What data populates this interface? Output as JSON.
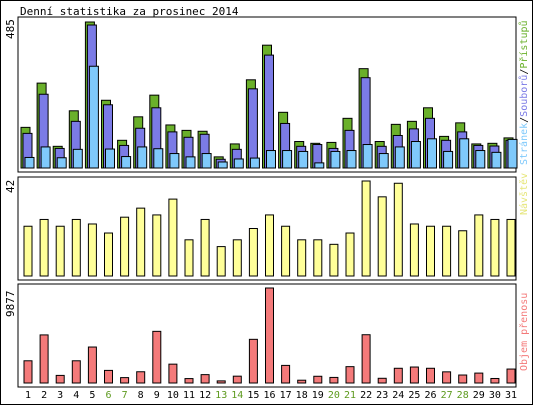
{
  "title": "Denní statistika za prosinec 2014",
  "colors": {
    "pristupu": "#6ab02a",
    "souboru": "#7b7be6",
    "stranek": "#7fc9fb",
    "navstev": "#ffff99",
    "objem": "#f47a7a",
    "weekend_label": "#5d9a1e",
    "weekday_label": "#000000"
  },
  "chart_data": [
    {
      "type": "bar",
      "name": "hits",
      "max_label": "485",
      "ylim": [
        0,
        485
      ],
      "legend": [
        {
          "label": "Přístupů",
          "color": "#6ab02a"
        },
        {
          "label": "Souborů",
          "color": "#7b7be6"
        },
        {
          "label": "Stránek",
          "color": "#7fc9fb"
        }
      ],
      "legend_separator": "/",
      "categories": [
        "1",
        "2",
        "3",
        "4",
        "5",
        "6",
        "7",
        "8",
        "9",
        "10",
        "11",
        "12",
        "13",
        "14",
        "15",
        "16",
        "17",
        "18",
        "19",
        "20",
        "21",
        "22",
        "23",
        "24",
        "25",
        "26",
        "27",
        "28",
        "29",
        "30",
        "31"
      ],
      "series": [
        {
          "name": "Přístupů",
          "values": [
            135,
            282,
            72,
            190,
            485,
            225,
            92,
            170,
            242,
            143,
            125,
            122,
            37,
            80,
            293,
            408,
            185,
            88,
            82,
            85,
            165,
            330,
            88,
            145,
            155,
            200,
            105,
            150,
            80,
            82,
            100
          ]
        },
        {
          "name": "Souborů",
          "values": [
            115,
            245,
            65,
            155,
            475,
            210,
            75,
            132,
            200,
            120,
            102,
            112,
            29,
            62,
            263,
            375,
            148,
            72,
            78,
            65,
            125,
            300,
            72,
            108,
            130,
            165,
            92,
            120,
            75,
            73,
            92
          ]
        },
        {
          "name": "Stránek",
          "values": [
            35,
            70,
            34,
            62,
            338,
            63,
            38,
            70,
            64,
            48,
            37,
            48,
            20,
            30,
            33,
            58,
            58,
            55,
            17,
            55,
            58,
            78,
            48,
            70,
            88,
            97,
            55,
            97,
            58,
            52,
            95
          ]
        }
      ]
    },
    {
      "type": "bar",
      "name": "visits",
      "max_label": "42",
      "ylim": [
        0,
        42
      ],
      "legend": [
        {
          "label": "Návštěv",
          "color": "#ffff99"
        }
      ],
      "categories": [
        "1",
        "2",
        "3",
        "4",
        "5",
        "6",
        "7",
        "8",
        "9",
        "10",
        "11",
        "12",
        "13",
        "14",
        "15",
        "16",
        "17",
        "18",
        "19",
        "20",
        "21",
        "22",
        "23",
        "24",
        "25",
        "26",
        "27",
        "28",
        "29",
        "30",
        "31"
      ],
      "series": [
        {
          "name": "Návštěv",
          "values": [
            22,
            25,
            22,
            25,
            23,
            19,
            26,
            30,
            27,
            34,
            16,
            25,
            13,
            16,
            21,
            27,
            22,
            16,
            16,
            14,
            19,
            42,
            35,
            41,
            23,
            22,
            22,
            20,
            27,
            25,
            25
          ]
        }
      ]
    },
    {
      "type": "bar",
      "name": "volume",
      "max_label": "9877",
      "ylim": [
        0,
        9877
      ],
      "legend": [
        {
          "label": "Objem přenosu",
          "color": "#f47a7a"
        }
      ],
      "categories": [
        "1",
        "2",
        "3",
        "4",
        "5",
        "6",
        "7",
        "8",
        "9",
        "10",
        "11",
        "12",
        "13",
        "14",
        "15",
        "16",
        "17",
        "18",
        "19",
        "20",
        "21",
        "22",
        "23",
        "24",
        "25",
        "26",
        "27",
        "28",
        "29",
        "30",
        "31"
      ],
      "series": [
        {
          "name": "Objem přenosu",
          "values": [
            2310,
            5000,
            790,
            2310,
            3740,
            1310,
            560,
            1170,
            5370,
            1960,
            460,
            870,
            220,
            710,
            4540,
            9877,
            1830,
            290,
            700,
            580,
            1700,
            5020,
            490,
            1530,
            1660,
            1530,
            1160,
            830,
            1030,
            470,
            1450
          ]
        }
      ]
    }
  ],
  "x_labels": [
    {
      "text": "1",
      "weekend": false
    },
    {
      "text": "2",
      "weekend": false
    },
    {
      "text": "3",
      "weekend": false
    },
    {
      "text": "4",
      "weekend": false
    },
    {
      "text": "5",
      "weekend": false
    },
    {
      "text": "6",
      "weekend": true
    },
    {
      "text": "7",
      "weekend": true
    },
    {
      "text": "8",
      "weekend": false
    },
    {
      "text": "9",
      "weekend": false
    },
    {
      "text": "10",
      "weekend": false
    },
    {
      "text": "11",
      "weekend": false
    },
    {
      "text": "12",
      "weekend": false
    },
    {
      "text": "13",
      "weekend": true
    },
    {
      "text": "14",
      "weekend": true
    },
    {
      "text": "15",
      "weekend": false
    },
    {
      "text": "16",
      "weekend": false
    },
    {
      "text": "17",
      "weekend": false
    },
    {
      "text": "18",
      "weekend": false
    },
    {
      "text": "19",
      "weekend": false
    },
    {
      "text": "20",
      "weekend": true
    },
    {
      "text": "21",
      "weekend": true
    },
    {
      "text": "22",
      "weekend": false
    },
    {
      "text": "23",
      "weekend": false
    },
    {
      "text": "24",
      "weekend": false
    },
    {
      "text": "25",
      "weekend": false
    },
    {
      "text": "26",
      "weekend": false
    },
    {
      "text": "27",
      "weekend": true
    },
    {
      "text": "28",
      "weekend": true
    },
    {
      "text": "29",
      "weekend": false
    },
    {
      "text": "30",
      "weekend": false
    },
    {
      "text": "31",
      "weekend": false
    }
  ]
}
